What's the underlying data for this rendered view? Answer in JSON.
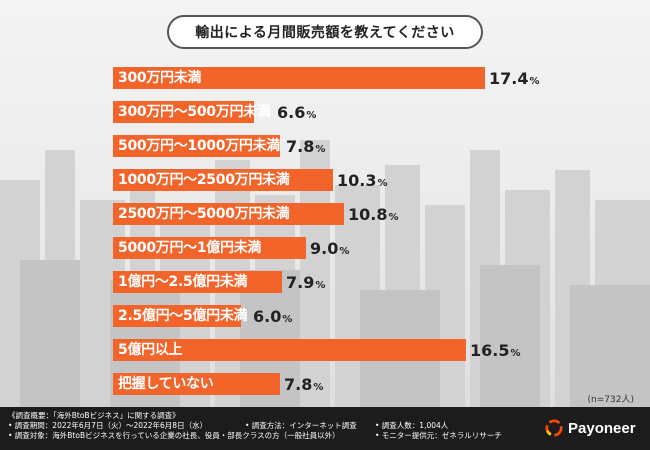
{
  "chart_data": {
    "type": "bar",
    "orientation": "horizontal",
    "title": "輸出による月間販売額を教えてください",
    "categories": [
      "300万円未満",
      "300万円～500万円未満",
      "500万円～1000万円未満",
      "1000万円～2500万円未満",
      "2500万円～5000万円未満",
      "5000万円～1億円未満",
      "1億円～2.5億円未満",
      "2.5億円～5億円未満",
      "5億円以上",
      "把握していない"
    ],
    "values": [
      17.4,
      6.6,
      7.8,
      10.3,
      10.8,
      9.0,
      7.9,
      6.0,
      16.5,
      7.8
    ],
    "value_labels": [
      "17.4",
      "6.6",
      "7.8",
      "10.3",
      "10.8",
      "9.0",
      "7.9",
      "6.0",
      "16.5",
      "7.8"
    ],
    "unit": "%",
    "xlim": [
      0,
      18
    ],
    "bar_color": "#f2642a",
    "note": "(n=732人)"
  },
  "footer": {
    "overview": "《調査概要：「海外BtoBビジネス」に関する調査》",
    "period": "• 調査期間：2022年6月7日（火）～2022年6月8日（水）",
    "method": "• 調査方法：インターネット調査",
    "respondents": "• 調査人数：1,004人",
    "target": "• 調査対象：海外BtoBビジネスを行っている企業の社長、役員・部長クラスの方（一般社員以外）",
    "monitor": "• モニター提供元：ゼネラルリサーチ",
    "brand": "Payoneer"
  }
}
